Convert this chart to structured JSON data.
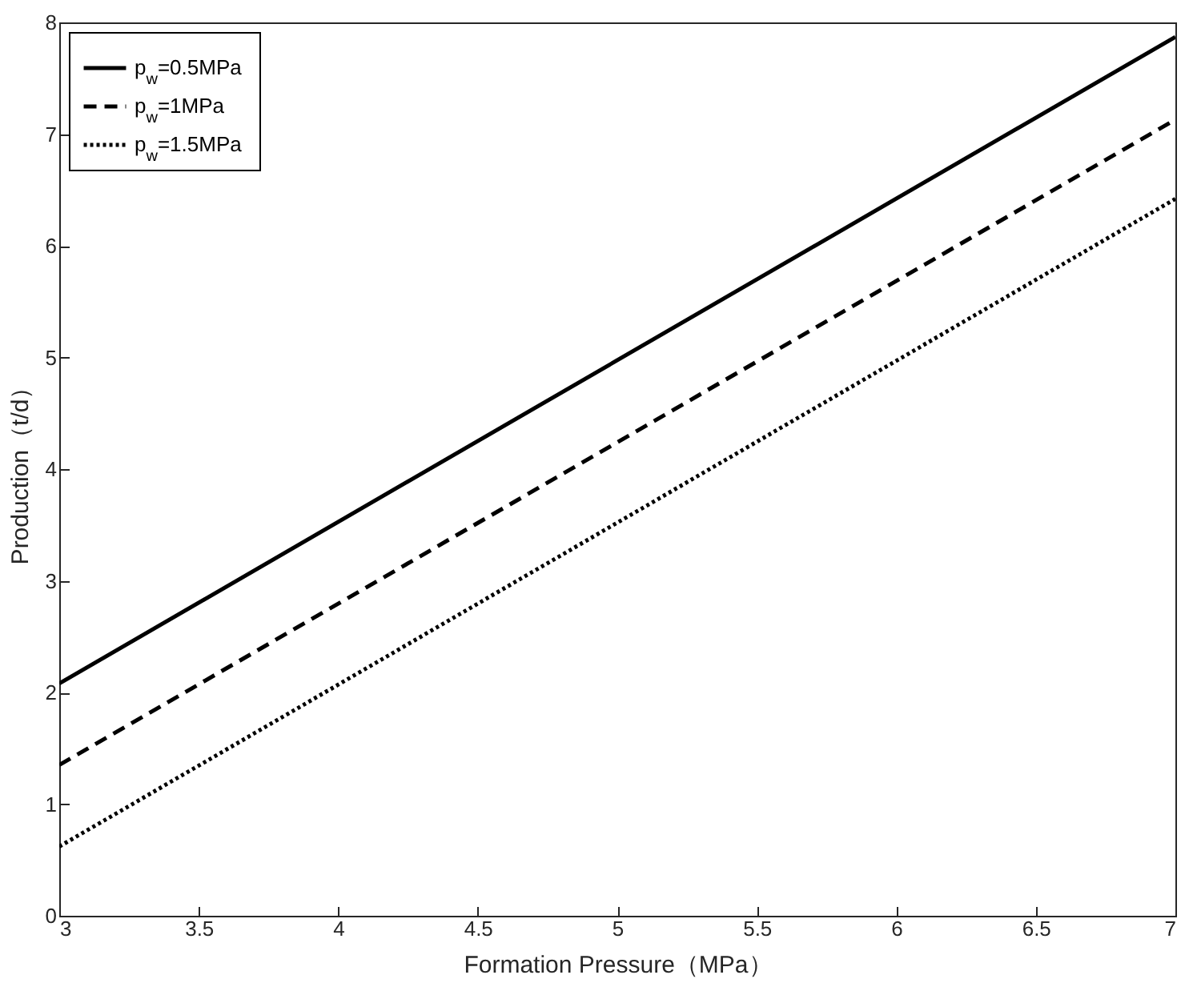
{
  "chart_data": {
    "type": "line",
    "xlabel": "Formation Pressure（MPa）",
    "ylabel": "Production（t/d）",
    "x": [
      3,
      7
    ],
    "xlim": [
      3,
      7
    ],
    "ylim": [
      0,
      8
    ],
    "xticks": [
      3,
      3.5,
      4,
      4.5,
      5,
      5.5,
      6,
      6.5,
      7
    ],
    "yticks": [
      0,
      1,
      2,
      3,
      4,
      5,
      6,
      7,
      8
    ],
    "grid": false,
    "legend": "top left",
    "marker": "none",
    "series": [
      {
        "name": "p$_{w}$=0.5MPa",
        "color": "#000000",
        "line_style": "solid",
        "values": [
          2.08,
          7.87
        ]
      },
      {
        "name": "p$_{w}$=1MPa",
        "color": "#000000",
        "line_style": "dashed",
        "values": [
          1.35,
          7.13
        ]
      },
      {
        "name": "p$_{w}$=1.5MPa",
        "color": "#000000",
        "line_style": "dotted",
        "values": [
          0.62,
          6.42
        ]
      }
    ]
  }
}
